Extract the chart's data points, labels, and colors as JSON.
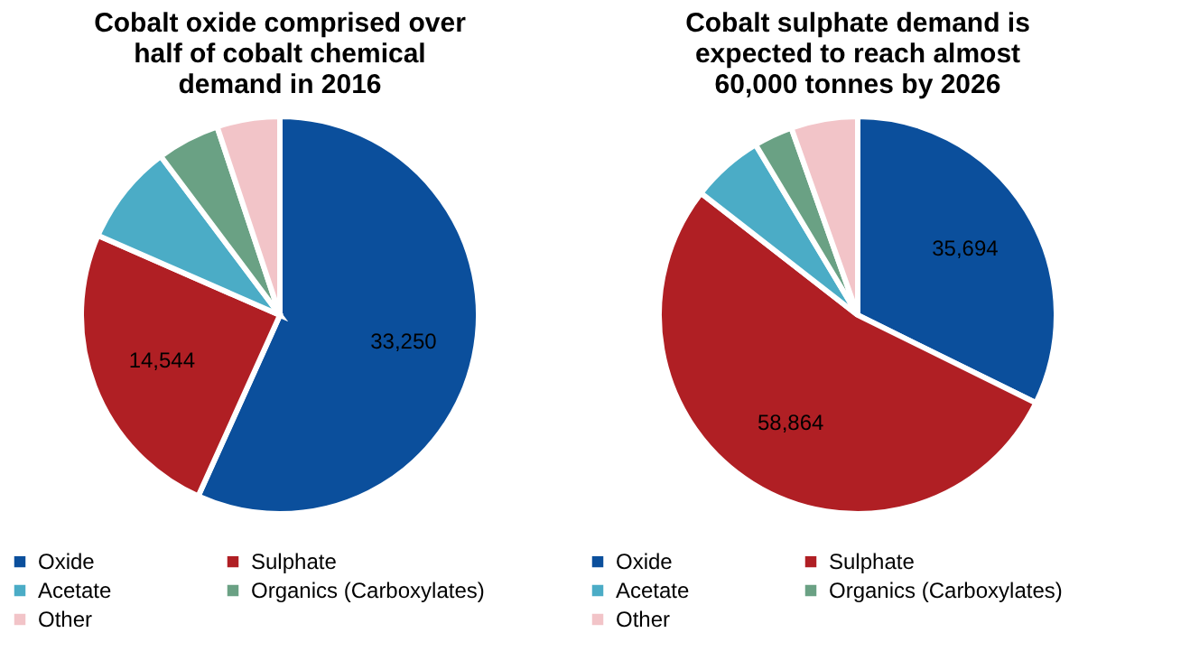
{
  "chart_data": [
    {
      "type": "pie",
      "title": "Cobalt oxide comprised over\nhalf of cobalt chemical\ndemand in 2016",
      "categories": [
        "Oxide",
        "Sulphate",
        "Acetate",
        "Organics (Carboxylates)",
        "Other"
      ],
      "values": [
        33250,
        14544,
        4800,
        3000,
        3000
      ],
      "value_labels": [
        "33,250",
        "14,544",
        null,
        null,
        null
      ],
      "colors": [
        "#0b4f9c",
        "#b01f24",
        "#4bacc6",
        "#6aa184",
        "#f2c4c8"
      ],
      "legend": "bottom"
    },
    {
      "type": "pie",
      "title": "Cobalt sulphate demand is\nexpected to reach almost\n60,000 tonnes by 2026",
      "categories": [
        "Oxide",
        "Sulphate",
        "Acetate",
        "Organics (Carboxylates)",
        "Other"
      ],
      "values": [
        35694,
        58864,
        6500,
        3500,
        6000
      ],
      "value_labels": [
        "35,694",
        "58,864",
        null,
        null,
        null
      ],
      "colors": [
        "#0b4f9c",
        "#b01f24",
        "#4bacc6",
        "#6aa184",
        "#f2c4c8"
      ],
      "legend": "bottom"
    }
  ]
}
